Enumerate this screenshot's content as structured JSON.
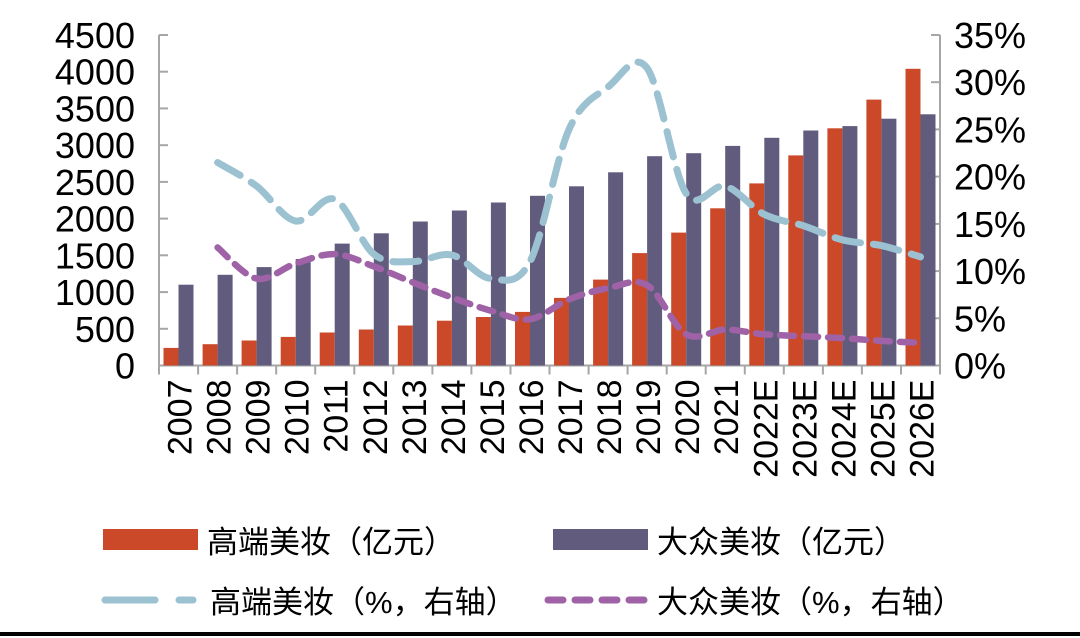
{
  "chart_data": {
    "type": "bar+line-combo",
    "categories": [
      "2007",
      "2008",
      "2009",
      "2010",
      "2011",
      "2012",
      "2013",
      "2014",
      "2015",
      "2016",
      "2017",
      "2018",
      "2019",
      "2020",
      "2021",
      "2022E",
      "2023E",
      "2024E",
      "2025E",
      "2026E"
    ],
    "series": [
      {
        "name": "高端美妆（亿元）",
        "type": "bar",
        "axis": "left",
        "color": "#CB4928",
        "values": [
          240,
          290,
          340,
          390,
          450,
          490,
          545,
          610,
          660,
          730,
          920,
          1170,
          1530,
          1810,
          2140,
          2480,
          2860,
          3230,
          3620,
          4040
        ]
      },
      {
        "name": "大众美妆（亿元）",
        "type": "bar",
        "axis": "left",
        "color": "#615C7E",
        "values": [
          1100,
          1235,
          1340,
          1450,
          1660,
          1800,
          1960,
          2110,
          2220,
          2310,
          2440,
          2630,
          2850,
          2890,
          2990,
          3100,
          3200,
          3260,
          3360,
          3420
        ]
      },
      {
        "name": "高端美妆（%，右轴）",
        "type": "line",
        "axis": "right",
        "color": "#9CC2D2",
        "dash": "long-short",
        "values": [
          null,
          21.5,
          19.0,
          15.3,
          17.6,
          11.8,
          11.0,
          11.7,
          9.2,
          11.0,
          25.0,
          29.5,
          31.5,
          18.2,
          19.0,
          16.0,
          14.8,
          13.3,
          12.7,
          11.5
        ]
      },
      {
        "name": "大众美妆（%，右轴）",
        "type": "line",
        "axis": "right",
        "color": "#9F62A6",
        "dash": "short",
        "values": [
          null,
          12.5,
          9.2,
          10.8,
          11.8,
          10.5,
          8.8,
          7.2,
          5.8,
          4.9,
          7.0,
          8.2,
          8.5,
          3.3,
          3.8,
          3.3,
          3.1,
          2.9,
          2.6,
          2.4
        ]
      }
    ],
    "left_axis": {
      "min": 0,
      "max": 4500,
      "step": 500,
      "labels": [
        "4500",
        "4000",
        "3500",
        "3000",
        "2500",
        "2000",
        "1500",
        "1000",
        "500",
        "0"
      ]
    },
    "right_axis": {
      "min": 0,
      "max": 35,
      "step": 5,
      "labels": [
        "35%",
        "30%",
        "25%",
        "20%",
        "15%",
        "10%",
        "5%",
        "0%"
      ]
    },
    "grid": false,
    "legend_position": "bottom",
    "axis_color": "#A6A6A6",
    "text_color": "#000000",
    "background": "#FFFFFF"
  }
}
